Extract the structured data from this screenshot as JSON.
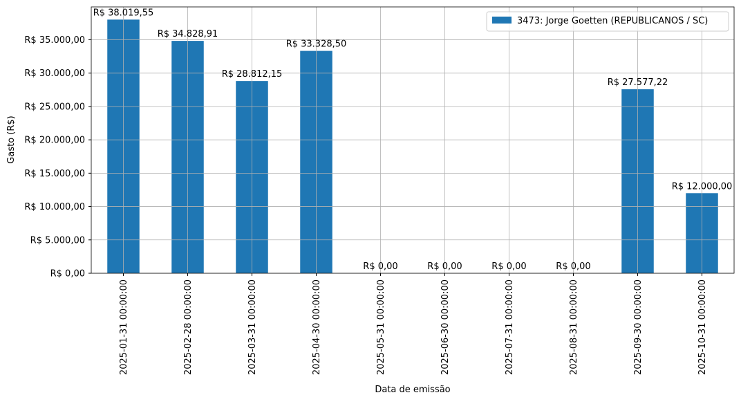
{
  "chart_data": {
    "type": "bar",
    "xlabel": "Data de emissão",
    "ylabel": "Gasto (R$)",
    "categories": [
      "2025-01-31 00:00:00",
      "2025-02-28 00:00:00",
      "2025-03-31 00:00:00",
      "2025-04-30 00:00:00",
      "2025-05-31 00:00:00",
      "2025-06-30 00:00:00",
      "2025-07-31 00:00:00",
      "2025-08-31 00:00:00",
      "2025-09-30 00:00:00",
      "2025-10-31 00:00:00"
    ],
    "series": [
      {
        "name": "3473: Jorge Goetten (REPUBLICANOS / SC)",
        "color": "#1f77b4",
        "values": [
          38019.55,
          34828.91,
          28812.15,
          33328.5,
          0,
          0,
          0,
          0,
          27577.22,
          12000
        ],
        "value_labels": [
          "R$ 38.019,55",
          "R$ 34.828,91",
          "R$ 28.812,15",
          "R$ 33.328,50",
          "R$ 0,00",
          "R$ 0,00",
          "R$ 0,00",
          "R$ 0,00",
          "R$ 27.577,22",
          "R$ 12.000,00"
        ]
      }
    ],
    "ylim": [
      0,
      39920.53
    ],
    "yticks": [
      {
        "value": 0,
        "label": "R$ 0,00"
      },
      {
        "value": 5000,
        "label": "R$ 5.000,00"
      },
      {
        "value": 10000,
        "label": "R$ 10.000,00"
      },
      {
        "value": 15000,
        "label": "R$ 15.000,00"
      },
      {
        "value": 20000,
        "label": "R$ 20.000,00"
      },
      {
        "value": 25000,
        "label": "R$ 25.000,00"
      },
      {
        "value": 30000,
        "label": "R$ 30.000,00"
      },
      {
        "value": 35000,
        "label": "R$ 35.000,00"
      }
    ],
    "grid": true,
    "legend": "upper right"
  }
}
